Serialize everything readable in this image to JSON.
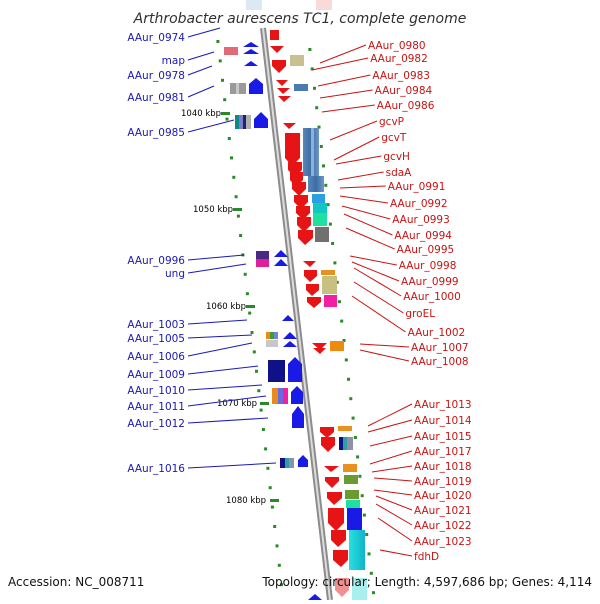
{
  "header": {
    "title": "Arthrobacter aurescens TC1, complete genome"
  },
  "footer": {
    "accession": "Accession: NC_008711",
    "summary": "Topology: circular; Length: 4,597,686 bp; Genes: 4,114"
  },
  "scale_labels": [
    "1040 kbp",
    "1050 kbp",
    "1060 kbp",
    "1070 kbp",
    "1080 kbp"
  ],
  "left_genes": [
    "AAur_0974",
    "map",
    "AAur_0978",
    "AAur_0981",
    "AAur_0985",
    "AAur_0996",
    "ung",
    "AAur_1003",
    "AAur_1005",
    "AAur_1006",
    "AAur_1009",
    "AAur_1010",
    "AAur_1011",
    "AAur_1012",
    "AAur_1016"
  ],
  "right_genes": [
    "AAur_0980",
    "AAur_0982",
    "AAur_0983",
    "AAur_0984",
    "AAur_0986",
    "gcvP",
    "gcvT",
    "gcvH",
    "sdaA",
    "AAur_0991",
    "AAur_0992",
    "AAur_0993",
    "AAur_0994",
    "AAur_0995",
    "AAur_0998",
    "AAur_0999",
    "AAur_1000",
    "groEL",
    "AAur_1002",
    "AAur_1007",
    "AAur_1008",
    "AAur_1013",
    "AAur_1014",
    "AAur_1015",
    "AAur_1017",
    "AAur_1018",
    "AAur_1019",
    "AAur_1020",
    "AAur_1021",
    "AAur_1022",
    "AAur_1023",
    "fdhD"
  ],
  "colors": {
    "forward_strand": "#1a1ae6",
    "reverse_strand": "#e61414",
    "backbone": "#8c8c8c",
    "left_label": "#1a1ab4",
    "right_label": "#c81414",
    "tick": "#2a8a2a"
  }
}
